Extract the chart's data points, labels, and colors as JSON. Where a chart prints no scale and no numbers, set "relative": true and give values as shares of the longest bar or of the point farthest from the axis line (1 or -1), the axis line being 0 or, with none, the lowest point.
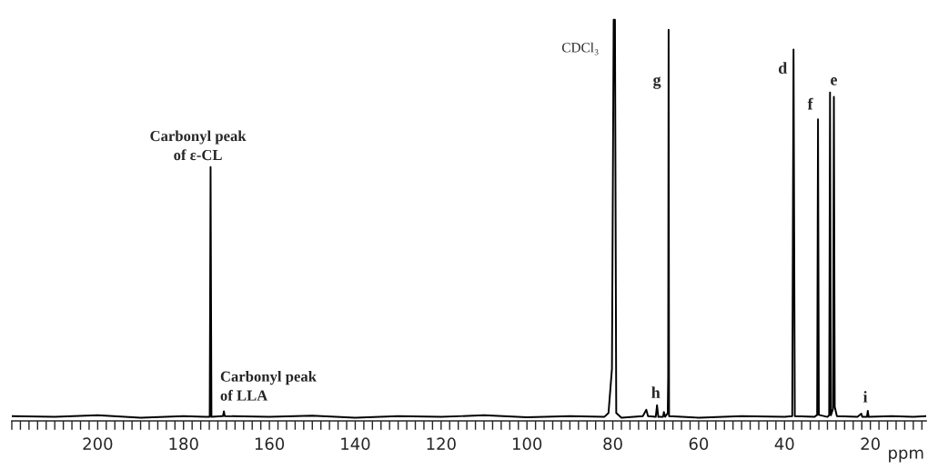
{
  "chart_data": {
    "type": "line",
    "relative": true,
    "xlabel": "ppm",
    "x": [
      220,
      210,
      200,
      190,
      180,
      175,
      173.9,
      173.7,
      173.5,
      171,
      170.8,
      170.6,
      170.4,
      160,
      150,
      140,
      130,
      120,
      110,
      100,
      90,
      82,
      81,
      80.2,
      79.8,
      79.5,
      79.2,
      78,
      73,
      72.2,
      71.8,
      70.0,
      69.7,
      69.4,
      68.3,
      68.1,
      67.8,
      67.2,
      67.1,
      67.0,
      66.9,
      60,
      50,
      40,
      38.2,
      37.9,
      37.6,
      33,
      32.4,
      32.2,
      32.0,
      30,
      29.6,
      29.4,
      29.2,
      28.7,
      28.5,
      28.3,
      27.8,
      23,
      22.1,
      21.9,
      20.8,
      20.6,
      20.4,
      15,
      10,
      7
    ],
    "series": [
      {
        "color": "#000000",
        "values": [
          0.012,
          0.01,
          0.014,
          0.008,
          0.012,
          0.01,
          0.01,
          0.633,
          0.01,
          0.012,
          0.012,
          0.024,
          0.012,
          0.01,
          0.013,
          0.008,
          0.012,
          0.01,
          0.014,
          0.009,
          0.012,
          0.01,
          0.02,
          0.13,
          1.0,
          1.0,
          0.02,
          0.008,
          0.012,
          0.028,
          0.012,
          0.01,
          0.039,
          0.01,
          0.01,
          0.022,
          0.01,
          0.02,
          0.11,
          0.975,
          0.012,
          0.008,
          0.012,
          0.01,
          0.012,
          0.926,
          0.012,
          0.01,
          0.015,
          0.752,
          0.015,
          0.01,
          0.014,
          0.819,
          0.014,
          0.03,
          0.808,
          0.035,
          0.012,
          0.01,
          0.018,
          0.01,
          0.01,
          0.025,
          0.01,
          0.012,
          0.01,
          0.012
        ]
      }
    ],
    "xlim": [
      220,
      7
    ],
    "xticks": [
      {
        "value": 220,
        "label": null
      },
      {
        "value": 218,
        "label": null
      },
      {
        "value": 216,
        "label": null
      },
      {
        "value": 214,
        "label": null
      },
      {
        "value": 212,
        "label": null
      },
      {
        "value": 210,
        "label": null
      },
      {
        "value": 208,
        "label": null
      },
      {
        "value": 206,
        "label": null
      },
      {
        "value": 204,
        "label": null
      },
      {
        "value": 202,
        "label": null
      },
      200,
      {
        "value": 198,
        "label": null
      },
      {
        "value": 196,
        "label": null
      },
      {
        "value": 194,
        "label": null
      },
      {
        "value": 192,
        "label": null
      },
      {
        "value": 190,
        "label": null
      },
      {
        "value": 188,
        "label": null
      },
      {
        "value": 186,
        "label": null
      },
      {
        "value": 184,
        "label": null
      },
      {
        "value": 182,
        "label": null
      },
      180,
      {
        "value": 178,
        "label": null
      },
      {
        "value": 176,
        "label": null
      },
      {
        "value": 174,
        "label": null
      },
      {
        "value": 172,
        "label": null
      },
      {
        "value": 170,
        "label": null
      },
      {
        "value": 168,
        "label": null
      },
      {
        "value": 166,
        "label": null
      },
      {
        "value": 164,
        "label": null
      },
      {
        "value": 162,
        "label": null
      },
      160,
      {
        "value": 158,
        "label": null
      },
      {
        "value": 156,
        "label": null
      },
      {
        "value": 154,
        "label": null
      },
      {
        "value": 152,
        "label": null
      },
      {
        "value": 150,
        "label": null
      },
      {
        "value": 148,
        "label": null
      },
      {
        "value": 146,
        "label": null
      },
      {
        "value": 144,
        "label": null
      },
      {
        "value": 142,
        "label": null
      },
      140,
      {
        "value": 138,
        "label": null
      },
      {
        "value": 136,
        "label": null
      },
      {
        "value": 134,
        "label": null
      },
      {
        "value": 132,
        "label": null
      },
      {
        "value": 130,
        "label": null
      },
      {
        "value": 128,
        "label": null
      },
      {
        "value": 126,
        "label": null
      },
      {
        "value": 124,
        "label": null
      },
      {
        "value": 122,
        "label": null
      },
      120,
      {
        "value": 118,
        "label": null
      },
      {
        "value": 116,
        "label": null
      },
      {
        "value": 114,
        "label": null
      },
      {
        "value": 112,
        "label": null
      },
      {
        "value": 110,
        "label": null
      },
      {
        "value": 108,
        "label": null
      },
      {
        "value": 106,
        "label": null
      },
      {
        "value": 104,
        "label": null
      },
      {
        "value": 102,
        "label": null
      },
      100,
      {
        "value": 98,
        "label": null
      },
      {
        "value": 96,
        "label": null
      },
      {
        "value": 94,
        "label": null
      },
      {
        "value": 92,
        "label": null
      },
      {
        "value": 90,
        "label": null
      },
      {
        "value": 88,
        "label": null
      },
      {
        "value": 86,
        "label": null
      },
      {
        "value": 84,
        "label": null
      },
      {
        "value": 82,
        "label": null
      },
      80,
      {
        "value": 78,
        "label": null
      },
      {
        "value": 76,
        "label": null
      },
      {
        "value": 74,
        "label": null
      },
      {
        "value": 72,
        "label": null
      },
      {
        "value": 70,
        "label": null
      },
      {
        "value": 68,
        "label": null
      },
      {
        "value": 66,
        "label": null
      },
      {
        "value": 64,
        "label": null
      },
      {
        "value": 62,
        "label": null
      },
      60,
      {
        "value": 58,
        "label": null
      },
      {
        "value": 56,
        "label": null
      },
      {
        "value": 54,
        "label": null
      },
      {
        "value": 52,
        "label": null
      },
      {
        "value": 50,
        "label": null
      },
      {
        "value": 48,
        "label": null
      },
      {
        "value": 46,
        "label": null
      },
      {
        "value": 44,
        "label": null
      },
      {
        "value": 42,
        "label": null
      },
      40,
      {
        "value": 38,
        "label": null
      },
      {
        "value": 36,
        "label": null
      },
      {
        "value": 34,
        "label": null
      },
      {
        "value": 32,
        "label": null
      },
      {
        "value": 30,
        "label": null
      },
      {
        "value": 28,
        "label": null
      },
      {
        "value": 26,
        "label": null
      },
      {
        "value": 24,
        "label": null
      },
      {
        "value": 22,
        "label": null
      },
      20,
      {
        "value": 18,
        "label": null
      },
      {
        "value": 16,
        "label": null
      },
      {
        "value": 14,
        "label": null
      },
      {
        "value": 12,
        "label": null
      },
      {
        "value": 10,
        "label": null
      },
      {
        "value": 8,
        "label": null
      }
    ],
    "grid": false,
    "annotations": [
      {
        "text": "Carbonyl peak\nof ε-CL",
        "x": 173.7,
        "y": 0.633
      },
      {
        "text": "Carbonyl peak\nof LLA",
        "x": 170.6,
        "y": 0.024
      },
      {
        "text": "CDCl₃",
        "x": 79.7,
        "y": 1.0
      },
      {
        "text": "g",
        "x": 67.0,
        "y": 0.975
      },
      {
        "text": "d",
        "x": 37.9,
        "y": 0.926
      },
      {
        "text": "f",
        "x": 32.2,
        "y": 0.752
      },
      {
        "text": "e",
        "x": 29.4,
        "y": 0.819
      },
      {
        "text": "h",
        "x": 69.7,
        "y": 0.039
      },
      {
        "text": "i",
        "x": 20.6,
        "y": 0.025
      }
    ]
  }
}
